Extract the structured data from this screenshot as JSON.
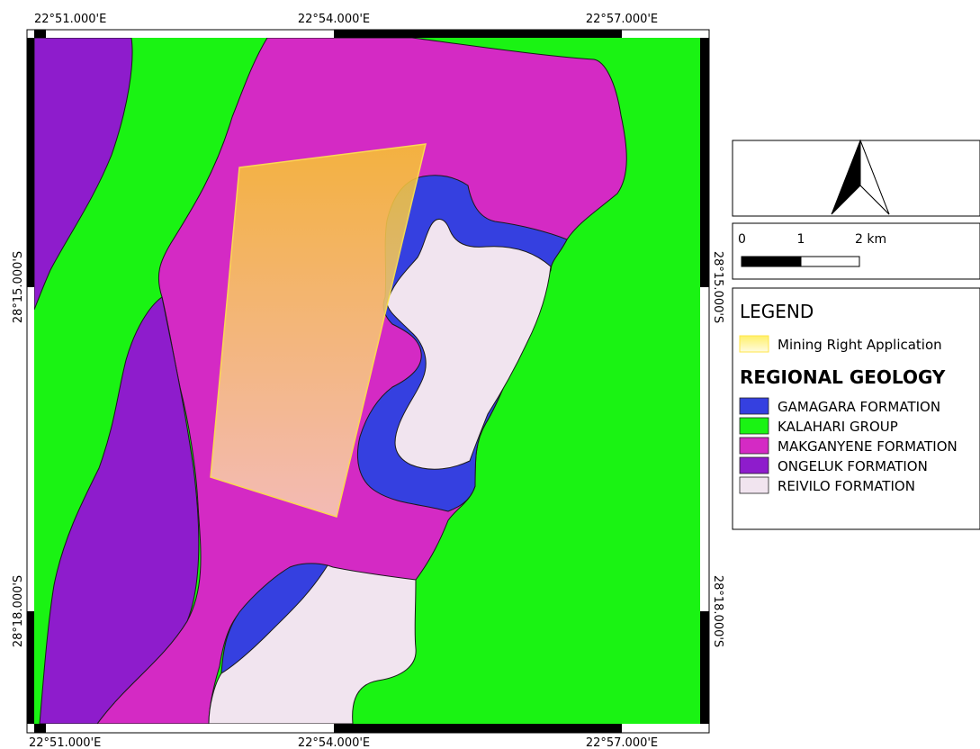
{
  "map": {
    "coords_top": [
      "22°51.000'E",
      "22°54.000'E",
      "22°57.000'E"
    ],
    "coords_bottom": [
      "22°51.000'E",
      "22°54.000'E",
      "22°57.000'E"
    ],
    "coords_left": [
      "28°15.000'S",
      "28°18.000'S"
    ],
    "coords_right": [
      "28°15.000'S",
      "28°18.000'S"
    ]
  },
  "scalebar": {
    "labels": [
      "0",
      "1",
      "2 km"
    ]
  },
  "legend": {
    "title": "LEGEND",
    "application_label": "Mining Right Application",
    "geology_heading": "REGIONAL GEOLOGY",
    "units": [
      {
        "label": "GAMAGARA FORMATION",
        "color": "#3540e0"
      },
      {
        "label": "KALAHARI GROUP",
        "color": "#1af313"
      },
      {
        "label": "MAKGANYENE FORMATION",
        "color": "#d42ac4"
      },
      {
        "label": "ONGELUK FORMATION",
        "color": "#8e1ccc"
      },
      {
        "label": "REIVILO FORMATION",
        "color": "#f1e4ef"
      }
    ]
  },
  "colors": {
    "application_fill_top": "#f7c52d",
    "application_fill_bottom": "#f6cfb2",
    "application_outline": "#ffe64a"
  }
}
